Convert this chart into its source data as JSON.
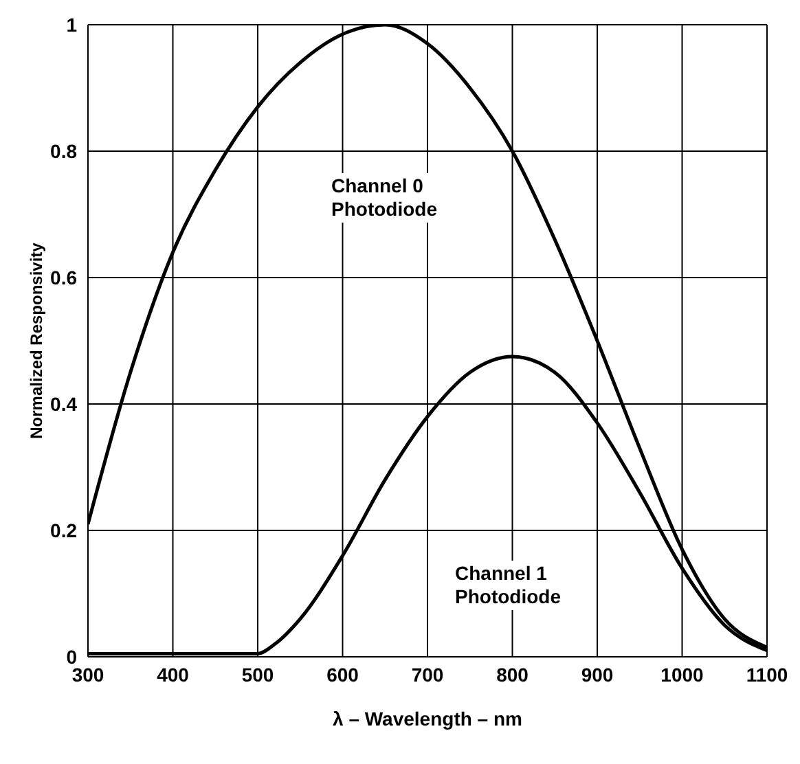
{
  "chart_data": {
    "type": "line",
    "xlabel": "λ – Wavelength – nm",
    "ylabel": "Normalized Responsivity",
    "xlim": [
      300,
      1100
    ],
    "xticks": [
      300,
      400,
      500,
      600,
      700,
      800,
      900,
      1000,
      1100
    ],
    "ylim": [
      0,
      1
    ],
    "yticks": [
      0,
      0.2,
      0.4,
      0.6,
      0.8,
      1
    ],
    "grid": true,
    "marker": "none",
    "line_style": "solid",
    "legend": false,
    "series": [
      {
        "color": "#000000",
        "x": [
          300,
          350,
          400,
          450,
          500,
          550,
          600,
          650,
          700,
          750,
          800,
          850,
          900,
          950,
          1000,
          1050,
          1100
        ],
        "values": [
          0.21,
          0.45,
          0.64,
          0.77,
          0.87,
          0.94,
          0.985,
          1.0,
          0.97,
          0.9,
          0.8,
          0.66,
          0.5,
          0.33,
          0.17,
          0.06,
          0.015
        ]
      },
      {
        "color": "#000000",
        "x": [
          300,
          350,
          400,
          450,
          500,
          520,
          550,
          600,
          650,
          700,
          750,
          800,
          850,
          900,
          950,
          1000,
          1050,
          1100
        ],
        "values": [
          0.005,
          0.005,
          0.005,
          0.005,
          0.005,
          0.02,
          0.06,
          0.16,
          0.28,
          0.38,
          0.45,
          0.475,
          0.45,
          0.37,
          0.26,
          0.14,
          0.05,
          0.01
        ]
      }
    ],
    "annotations": [
      "Channel 0\nPhotodiode",
      "Channel 1\nPhotodiode"
    ]
  }
}
